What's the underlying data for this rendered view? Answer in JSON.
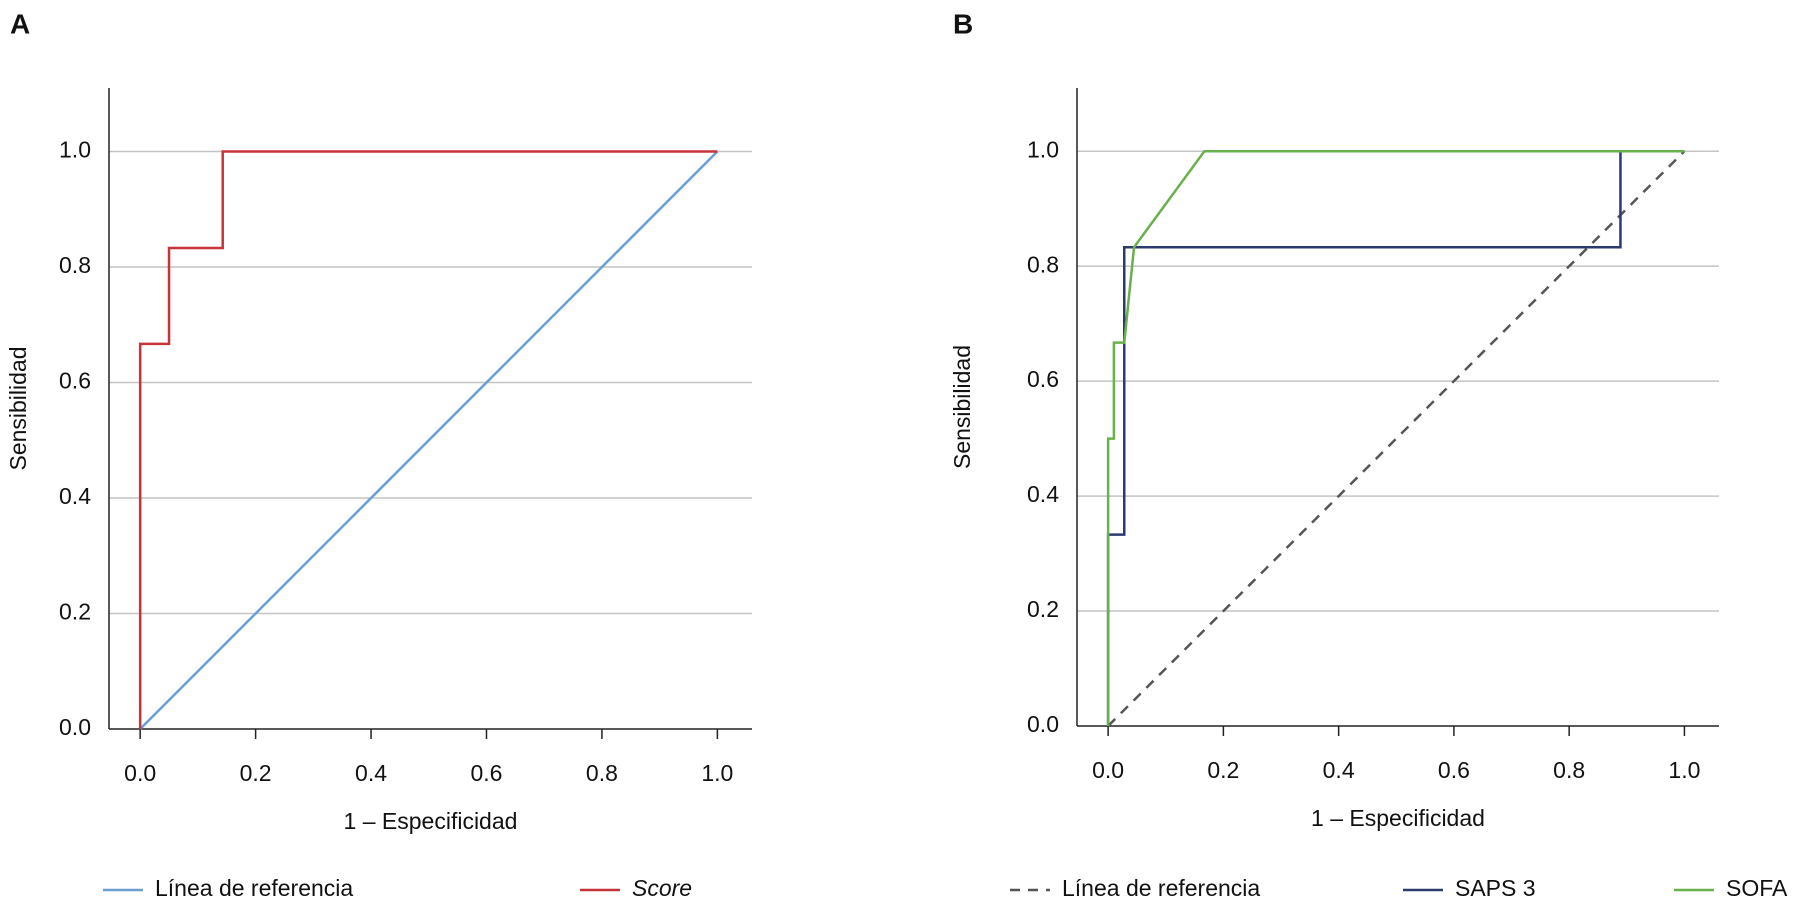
{
  "chart_data": [
    {
      "type": "line",
      "panel": "A",
      "x_label": "1 – Especificidad",
      "y_label": "Sensibilidad",
      "xlim": [
        -0.054,
        1.06
      ],
      "ylim": [
        0,
        1.11
      ],
      "xticks": [
        {
          "value": 0,
          "label": "0.0"
        },
        {
          "value": 0.2,
          "label": "0.2"
        },
        {
          "value": 0.4,
          "label": "0.4"
        },
        {
          "value": 0.6,
          "label": "0.6"
        },
        {
          "value": 0.8,
          "label": "0.8"
        },
        {
          "value": 1,
          "label": "1.0"
        }
      ],
      "yticks": [
        {
          "value": 0,
          "label": "0.0"
        },
        {
          "value": 0.2,
          "label": "0.2"
        },
        {
          "value": 0.4,
          "label": "0.4"
        },
        {
          "value": 0.6,
          "label": "0.6"
        },
        {
          "value": 0.8,
          "label": "0.8"
        },
        {
          "value": 1,
          "label": "1.0"
        }
      ],
      "grid": true,
      "series": [
        {
          "name": "Línea de referencia",
          "color": "#6a9fd0",
          "dash": false,
          "italic": false,
          "x": [
            0,
            1
          ],
          "values": [
            0,
            1
          ]
        },
        {
          "name": "Score",
          "color": "#c8333a",
          "dash": false,
          "italic": true,
          "x": [
            0,
            0,
            0.05,
            0.05,
            0.143,
            0.143,
            1
          ],
          "values": [
            0,
            0.667,
            0.667,
            0.833,
            0.833,
            1,
            1
          ]
        }
      ]
    },
    {
      "type": "line",
      "panel": "B",
      "x_label": "1 – Especificidad",
      "y_label": "Sensibilidad",
      "xlim": [
        -0.054,
        1.06
      ],
      "ylim": [
        0,
        1.11
      ],
      "xticks": [
        {
          "value": 0,
          "label": "0.0"
        },
        {
          "value": 0.2,
          "label": "0.2"
        },
        {
          "value": 0.4,
          "label": "0.4"
        },
        {
          "value": 0.6,
          "label": "0.6"
        },
        {
          "value": 0.8,
          "label": "0.8"
        },
        {
          "value": 1,
          "label": "1.0"
        }
      ],
      "yticks": [
        {
          "value": 0,
          "label": "0.0"
        },
        {
          "value": 0.2,
          "label": "0.2"
        },
        {
          "value": 0.4,
          "label": "0.4"
        },
        {
          "value": 0.6,
          "label": "0.6"
        },
        {
          "value": 0.8,
          "label": "0.8"
        },
        {
          "value": 1,
          "label": "1.0"
        }
      ],
      "grid": true,
      "series": [
        {
          "name": "Línea de referencia",
          "color": "#555555",
          "dash": true,
          "italic": false,
          "x": [
            0,
            1
          ],
          "values": [
            0,
            1
          ]
        },
        {
          "name": "SAPS 3",
          "color": "#2c3a6e",
          "dash": false,
          "italic": false,
          "x": [
            0,
            0,
            0.028,
            0.028,
            0.889,
            0.889,
            1
          ],
          "values": [
            0,
            0.333,
            0.333,
            0.833,
            0.833,
            1,
            1
          ]
        },
        {
          "name": "SOFA",
          "color": "#6ab04c",
          "dash": false,
          "italic": false,
          "x": [
            0,
            0,
            0.01,
            0.01,
            0.028,
            0.045,
            0.167,
            1
          ],
          "values": [
            0,
            0.5,
            0.5,
            0.667,
            0.667,
            0.833,
            1,
            1
          ]
        }
      ]
    }
  ]
}
